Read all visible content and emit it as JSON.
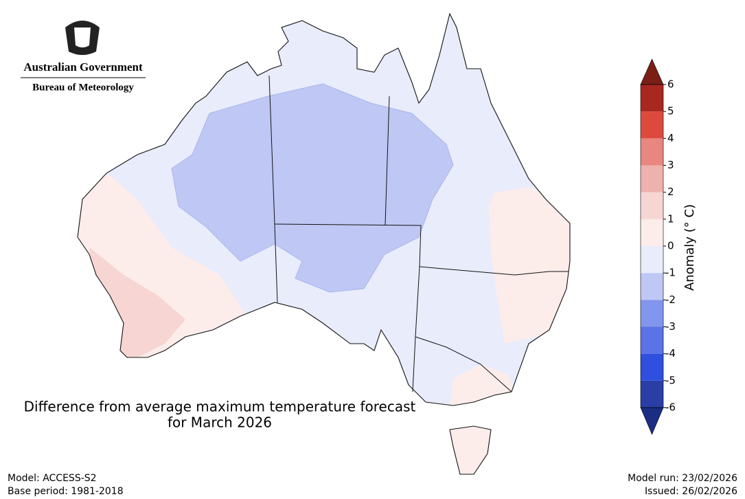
{
  "header": {
    "line1": "Australian Government",
    "line2": "Bureau of Meteorology"
  },
  "title": [
    "Difference from average maximum temperature forecast",
    "for March 2026"
  ],
  "colorbar": {
    "label": "Anomaly (° C)",
    "ticks": [
      -6,
      -5,
      -4,
      -3,
      -2,
      -1,
      0,
      1,
      2,
      3,
      4,
      5,
      6
    ],
    "colors": [
      "#2a3ea6",
      "#2f4fdf",
      "#5a73e6",
      "#8196ec",
      "#bfc8f4",
      "#e8ecfb",
      "#fcecea",
      "#f6d5d2",
      "#efb1ad",
      "#e8867f",
      "#dc4a3e",
      "#a8281f"
    ],
    "extend_colors": {
      "low": "#1c2d84",
      "high": "#7a1e16"
    }
  },
  "footer": {
    "model": "Model: ACCESS-S2",
    "base_period": "Base period: 1981-2018",
    "model_run": "Model run: 23/02/2026",
    "issued": "Issued: 26/02/2026"
  }
}
